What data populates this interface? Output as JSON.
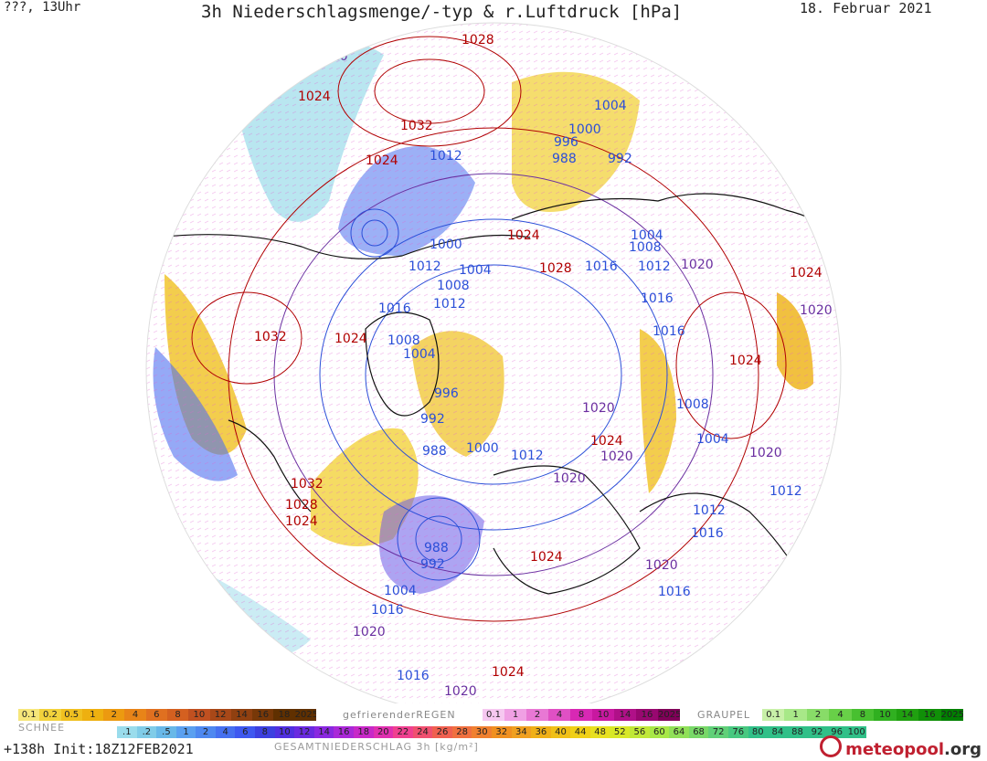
{
  "header": {
    "left": "???, 13Uhr",
    "title": "3h Niederschlagsmenge/-typ & r.Luftdruck [hPa]",
    "date": "18. Februar 2021"
  },
  "map": {
    "projection": "polar-stereographic",
    "isobar_labels": [
      {
        "text": "1020",
        "color": "#6a2fa0"
      },
      {
        "text": "1028",
        "color": "#b00000"
      },
      {
        "text": "1024",
        "color": "#b00000"
      },
      {
        "text": "1032",
        "color": "#b00000"
      },
      {
        "text": "1024",
        "color": "#b00000"
      },
      {
        "text": "1012",
        "color": "#2b4fd8"
      },
      {
        "text": "1004",
        "color": "#2b4fd8"
      },
      {
        "text": "1000",
        "color": "#2b4fd8"
      },
      {
        "text": "996",
        "color": "#2b4fd8"
      },
      {
        "text": "988",
        "color": "#2b4fd8"
      },
      {
        "text": "992",
        "color": "#2b4fd8"
      },
      {
        "text": "1000",
        "color": "#2b4fd8"
      },
      {
        "text": "1024",
        "color": "#b00000"
      },
      {
        "text": "1012",
        "color": "#2b4fd8"
      },
      {
        "text": "1004",
        "color": "#2b4fd8"
      },
      {
        "text": "1008",
        "color": "#2b4fd8"
      },
      {
        "text": "1028",
        "color": "#b00000"
      },
      {
        "text": "1016",
        "color": "#2b4fd8"
      },
      {
        "text": "1004",
        "color": "#2b4fd8"
      },
      {
        "text": "1008",
        "color": "#2b4fd8"
      },
      {
        "text": "1012",
        "color": "#2b4fd8"
      },
      {
        "text": "1020",
        "color": "#6a2fa0"
      },
      {
        "text": "1024",
        "color": "#b00000"
      },
      {
        "text": "1016",
        "color": "#2b4fd8"
      },
      {
        "text": "1012",
        "color": "#2b4fd8"
      },
      {
        "text": "1016",
        "color": "#2b4fd8"
      },
      {
        "text": "1020",
        "color": "#6a2fa0"
      },
      {
        "text": "1032",
        "color": "#b00000"
      },
      {
        "text": "1024",
        "color": "#b00000"
      },
      {
        "text": "1008",
        "color": "#2b4fd8"
      },
      {
        "text": "1004",
        "color": "#2b4fd8"
      },
      {
        "text": "1016",
        "color": "#2b4fd8"
      },
      {
        "text": "1024",
        "color": "#b00000"
      },
      {
        "text": "996",
        "color": "#2b4fd8"
      },
      {
        "text": "992",
        "color": "#2b4fd8"
      },
      {
        "text": "988",
        "color": "#2b4fd8"
      },
      {
        "text": "1000",
        "color": "#2b4fd8"
      },
      {
        "text": "1012",
        "color": "#2b4fd8"
      },
      {
        "text": "1020",
        "color": "#6a2fa0"
      },
      {
        "text": "1024",
        "color": "#b00000"
      },
      {
        "text": "1020",
        "color": "#6a2fa0"
      },
      {
        "text": "1008",
        "color": "#2b4fd8"
      },
      {
        "text": "1004",
        "color": "#2b4fd8"
      },
      {
        "text": "1020",
        "color": "#6a2fa0"
      },
      {
        "text": "1012",
        "color": "#2b4fd8"
      },
      {
        "text": "1020",
        "color": "#6a2fa0"
      },
      {
        "text": "1032",
        "color": "#b00000"
      },
      {
        "text": "1028",
        "color": "#b00000"
      },
      {
        "text": "1024",
        "color": "#b00000"
      },
      {
        "text": "1012",
        "color": "#2b4fd8"
      },
      {
        "text": "1016",
        "color": "#2b4fd8"
      },
      {
        "text": "988",
        "color": "#2b4fd8"
      },
      {
        "text": "992",
        "color": "#2b4fd8"
      },
      {
        "text": "1024",
        "color": "#b00000"
      },
      {
        "text": "1020",
        "color": "#6a2fa0"
      },
      {
        "text": "1004",
        "color": "#2b4fd8"
      },
      {
        "text": "1016",
        "color": "#2b4fd8"
      },
      {
        "text": "1016",
        "color": "#2b4fd8"
      },
      {
        "text": "1020",
        "color": "#6a2fa0"
      },
      {
        "text": "1024",
        "color": "#b00000"
      },
      {
        "text": "1016",
        "color": "#2b4fd8"
      },
      {
        "text": "1020",
        "color": "#6a2fa0"
      },
      {
        "text": "1024",
        "color": "#b00000"
      }
    ]
  },
  "legend": {
    "snow": {
      "title": "SCHNEE",
      "colors": [
        "#f6e67a",
        "#f2d23c",
        "#f0c020",
        "#eeb010",
        "#ec9a10",
        "#e88418",
        "#e07020",
        "#d46020",
        "#c05020",
        "#a84818",
        "#904010",
        "#783808",
        "#603000"
      ],
      "labels": [
        "0.1",
        "0.2",
        "0.5",
        "1",
        "2",
        "4",
        "6",
        "8",
        "10",
        "12",
        "14",
        "16",
        "18",
        "2025+"
      ]
    },
    "freezing_rain": {
      "title": "gefrierenderREGEN",
      "colors": [
        "#f6c8f0",
        "#f0a0e4",
        "#e878d4",
        "#e050c4",
        "#d828b4",
        "#c818a0",
        "#b01088",
        "#980870",
        "#800058"
      ],
      "labels": [
        "0.1",
        "1",
        "2",
        "4",
        "8",
        "10",
        "14",
        "16",
        "2025+"
      ]
    },
    "graupel": {
      "title": "GRAUPEL",
      "colors": [
        "#c8f0a8",
        "#a8e888",
        "#88dc68",
        "#68d048",
        "#48c030",
        "#30b020",
        "#20a010",
        "#109008",
        "#008000"
      ],
      "labels": [
        "0.1",
        "1",
        "2",
        "4",
        "8",
        "10",
        "14",
        "16",
        "2025+"
      ]
    },
    "total": {
      "title": "GESAMTNIEDERSCHLAG 3h [kg/m²]",
      "colors": [
        "#9adcec",
        "#80cce8",
        "#68b8e8",
        "#5aa0f0",
        "#4e88f0",
        "#4670f0",
        "#3e58f0",
        "#3c40e0",
        "#5030e0",
        "#6a2ae0",
        "#8a28e0",
        "#aa28d8",
        "#c828c8",
        "#e030b0",
        "#f04090",
        "#f05070",
        "#f06050",
        "#f07040",
        "#f08030",
        "#f09020",
        "#f0a020",
        "#f0b018",
        "#f0c018",
        "#f0d018",
        "#e8e020",
        "#d8e828",
        "#c0e838",
        "#a8e848",
        "#90e058",
        "#78d868",
        "#60d078",
        "#48c880",
        "#30c088"
      ],
      "labels": [
        ".1",
        ".2",
        ".5",
        "1",
        "2",
        "4",
        "6",
        "8",
        "10",
        "12",
        "14",
        "16",
        "18",
        "20",
        "22",
        "24",
        "26",
        "28",
        "30",
        "32",
        "34",
        "36",
        "40",
        "44",
        "48",
        "52",
        "56",
        "60",
        "64",
        "68",
        "72",
        "76",
        "80",
        "84",
        "88",
        "92",
        "96",
        "100"
      ]
    }
  },
  "footer": {
    "run": "+138h  Init:18Z12FEB2021",
    "brand_name": "meteopool",
    "brand_tld": ".org"
  }
}
